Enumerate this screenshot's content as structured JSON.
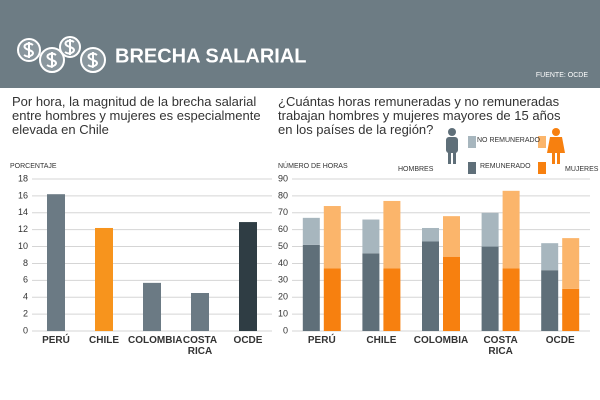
{
  "header": {
    "title": "BRECHA SALARIAL",
    "source": "FUENTE: OCDE"
  },
  "chart_data": [
    {
      "type": "bar",
      "title": "Por hora, la magnitud de la brecha salarial entre hombres y mujeres es especialmente elevada en Chile",
      "y_label": "PORCENTAJE",
      "categories": [
        "PERÚ",
        "CHILE",
        "COLOMBIA",
        "COSTA RICA",
        "OCDE"
      ],
      "values": [
        16.2,
        12.2,
        5.7,
        4.5,
        12.9
      ],
      "colors": [
        "#6b7a84",
        "#f7941d",
        "#6b7a84",
        "#6b7a84",
        "#2f3d44"
      ],
      "ylim": [
        0,
        18
      ],
      "yticks": [
        0,
        2,
        4,
        6,
        8,
        10,
        12,
        14,
        16,
        18
      ],
      "grid": true
    },
    {
      "type": "stacked",
      "title": "¿Cuántas horas remuneradas y no remuneradas trabajan hombres y mujeres mayores de 15 años en los países de la región?",
      "y_label": "NÚMERO DE HORAS",
      "categories": [
        "PERÚ",
        "CHILE",
        "COLOMBIA",
        "COSTA RICA",
        "OCDE"
      ],
      "stacks": [
        "REMUNERADO",
        "NO REMUNERADO"
      ],
      "groups": [
        {
          "name": "HOMBRES",
          "series": [
            {
              "color": "#5f6f79",
              "values": [
                51,
                46,
                53,
                50,
                36
              ]
            },
            {
              "color": "#a7b6be",
              "values": [
                16,
                20,
                8,
                20,
                16
              ]
            }
          ]
        },
        {
          "name": "MUJERES",
          "series": [
            {
              "color": "#f7800f",
              "values": [
                37,
                37,
                44,
                37,
                25
              ]
            },
            {
              "color": "#fbb56b",
              "values": [
                37,
                40,
                24,
                46,
                30
              ]
            }
          ]
        }
      ],
      "ylim": [
        0,
        90
      ],
      "yticks": [
        0,
        10,
        20,
        30,
        40,
        50,
        60,
        70,
        80,
        90
      ],
      "grid": true
    }
  ]
}
